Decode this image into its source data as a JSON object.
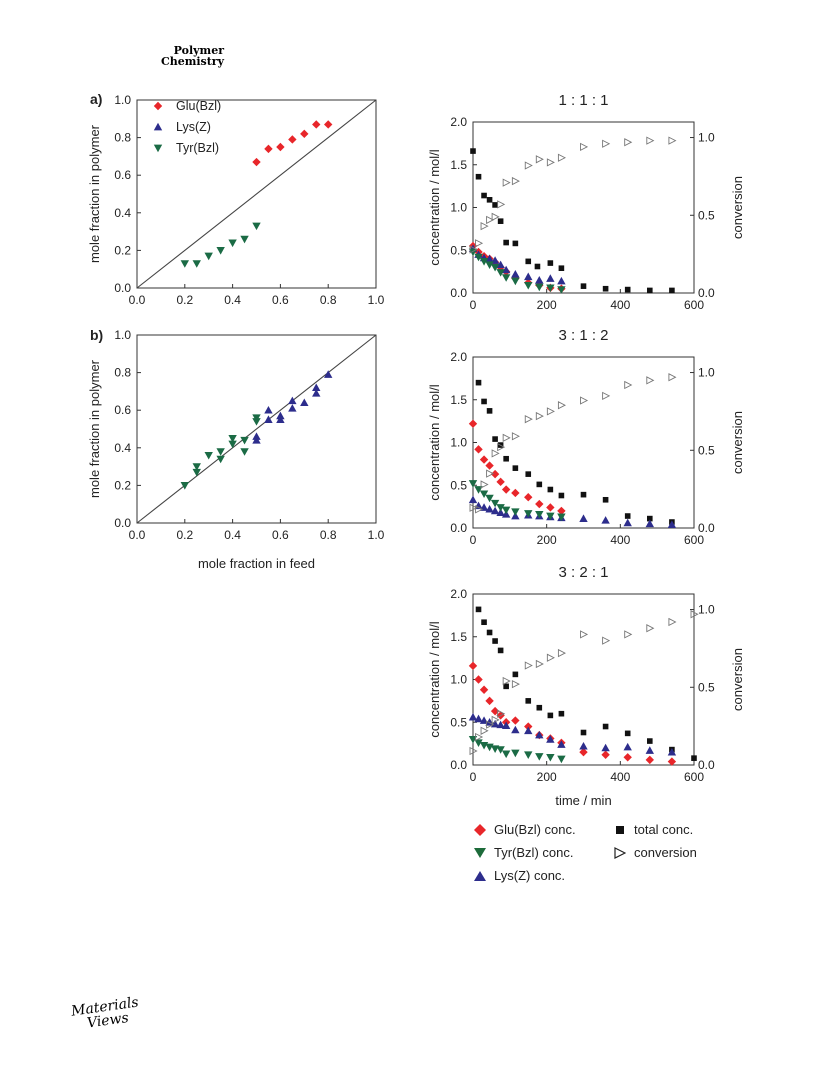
{
  "header": {
    "line1": "Polymer",
    "line2": "Chemistry"
  },
  "footer": {
    "line1": "Materials",
    "line2": "Views"
  },
  "colors": {
    "glu": "#e8262a",
    "lys": "#2d2d8c",
    "tyr": "#1b6b45",
    "tyr_b": "#1d6b3a",
    "black": "#111111",
    "gray": "#777777"
  },
  "bottom_legend": {
    "glu": "Glu(Bzl) conc.",
    "tyr": "Tyr(Bzl) conc.",
    "lys": "Lys(Z) conc.",
    "total": "total conc.",
    "conversion": "conversion"
  },
  "chart_data": [
    {
      "id": "a",
      "panel_label": "a)",
      "type": "scatter",
      "xlabel": "",
      "ylabel": "mole fraction in polymer",
      "xlim": [
        0,
        1.0
      ],
      "ylim": [
        0,
        1.0
      ],
      "xticks": [
        "0.0",
        "0.2",
        "0.4",
        "0.6",
        "0.8",
        "1.0"
      ],
      "yticks": [
        "0.0",
        "0.2",
        "0.4",
        "0.6",
        "0.8",
        "1.0"
      ],
      "legend": [
        "Glu(Bzl)",
        "Lys(Z)",
        "Tyr(Bzl)"
      ],
      "reference_line": "y = x",
      "series": [
        {
          "name": "Glu(Bzl)",
          "marker": "diamond",
          "color": "#e8262a",
          "x": [
            0.5,
            0.55,
            0.6,
            0.65,
            0.7,
            0.75,
            0.8
          ],
          "y": [
            0.67,
            0.74,
            0.75,
            0.79,
            0.82,
            0.87,
            0.87
          ]
        },
        {
          "name": "Tyr(Bzl)",
          "marker": "triangle-down",
          "color": "#1b6b45",
          "x": [
            0.2,
            0.25,
            0.3,
            0.35,
            0.4,
            0.45,
            0.5
          ],
          "y": [
            0.13,
            0.13,
            0.17,
            0.2,
            0.24,
            0.26,
            0.33
          ]
        }
      ]
    },
    {
      "id": "b",
      "panel_label": "b)",
      "type": "scatter",
      "xlabel": "mole fraction in feed",
      "ylabel": "mole fraction in polymer",
      "xlim": [
        0,
        1.0
      ],
      "ylim": [
        0,
        1.0
      ],
      "xticks": [
        "0.0",
        "0.2",
        "0.4",
        "0.6",
        "0.8",
        "1.0"
      ],
      "yticks": [
        "0.0",
        "0.2",
        "0.4",
        "0.6",
        "0.8",
        "1.0"
      ],
      "reference_line": "y = x",
      "series": [
        {
          "name": "Lys(Z)",
          "marker": "triangle-up",
          "color": "#2d2d8c",
          "x": [
            0.5,
            0.5,
            0.55,
            0.55,
            0.6,
            0.6,
            0.65,
            0.65,
            0.7,
            0.75,
            0.75,
            0.8
          ],
          "y": [
            0.44,
            0.46,
            0.55,
            0.6,
            0.55,
            0.57,
            0.61,
            0.65,
            0.64,
            0.69,
            0.72,
            0.79
          ]
        },
        {
          "name": "Tyr(Bzl)",
          "marker": "triangle-down",
          "color": "#1b6b45",
          "x": [
            0.2,
            0.25,
            0.25,
            0.3,
            0.35,
            0.35,
            0.4,
            0.4,
            0.45,
            0.45,
            0.5,
            0.5
          ],
          "y": [
            0.2,
            0.27,
            0.3,
            0.36,
            0.34,
            0.38,
            0.42,
            0.45,
            0.38,
            0.44,
            0.54,
            0.56
          ]
        }
      ]
    },
    {
      "id": "k1",
      "title": "1 : 1 : 1",
      "type": "scatter",
      "xlabel": "",
      "ylabel": "concentration / mol/l",
      "y2label": "conversion",
      "xlim": [
        0,
        600
      ],
      "ylim": [
        0,
        2.0
      ],
      "y2lim": [
        0,
        1.1
      ],
      "xticks": [
        "0",
        "200",
        "400",
        "600"
      ],
      "yticks": [
        "0.0",
        "0.5",
        "1.0",
        "1.5",
        "2.0"
      ],
      "y2ticks": [
        "0.0",
        "0.5",
        "1.0"
      ],
      "series": [
        {
          "name": "total conc.",
          "marker": "square",
          "color": "#111111",
          "x": [
            0,
            15,
            30,
            45,
            60,
            75,
            90,
            115,
            150,
            175,
            210,
            240,
            300,
            360,
            420,
            480,
            540
          ],
          "y": [
            1.66,
            1.36,
            1.14,
            1.09,
            1.03,
            0.84,
            0.59,
            0.58,
            0.37,
            0.31,
            0.35,
            0.29,
            0.08,
            0.05,
            0.04,
            0.03,
            0.03
          ]
        },
        {
          "name": "Glu(Bzl) conc.",
          "marker": "diamond",
          "color": "#e8262a",
          "x": [
            0,
            15,
            30,
            45,
            60,
            75,
            90,
            115,
            150,
            180,
            210,
            240
          ],
          "y": [
            0.55,
            0.48,
            0.43,
            0.4,
            0.36,
            0.3,
            0.25,
            0.17,
            0.12,
            0.09,
            0.06,
            0.05
          ]
        },
        {
          "name": "Lys(Z) conc.",
          "marker": "triangle-up",
          "color": "#2d2d8c",
          "x": [
            0,
            15,
            30,
            45,
            60,
            75,
            90,
            115,
            150,
            180,
            210,
            240
          ],
          "y": [
            0.52,
            0.45,
            0.41,
            0.4,
            0.38,
            0.33,
            0.27,
            0.22,
            0.19,
            0.15,
            0.17,
            0.14
          ]
        },
        {
          "name": "Tyr(Bzl) conc.",
          "marker": "triangle-down",
          "color": "#1b6b45",
          "x": [
            0,
            15,
            30,
            45,
            60,
            75,
            90,
            115,
            150,
            180,
            210,
            240
          ],
          "y": [
            0.48,
            0.42,
            0.37,
            0.33,
            0.3,
            0.24,
            0.18,
            0.14,
            0.09,
            0.07,
            0.06,
            0.04
          ]
        },
        {
          "name": "conversion",
          "marker": "open-triangle-right",
          "color": "#777777",
          "axis": "right",
          "x": [
            0,
            15,
            30,
            45,
            60,
            75,
            90,
            115,
            150,
            180,
            210,
            240,
            300,
            360,
            420,
            480,
            540
          ],
          "y": [
            0.28,
            0.32,
            0.43,
            0.47,
            0.49,
            0.57,
            0.71,
            0.72,
            0.82,
            0.86,
            0.84,
            0.87,
            0.94,
            0.96,
            0.97,
            0.98,
            0.98
          ]
        }
      ]
    },
    {
      "id": "k2",
      "title": "3 : 1 : 2",
      "type": "scatter",
      "xlabel": "",
      "ylabel": "concentration / mol/l",
      "y2label": "conversion",
      "xlim": [
        0,
        600
      ],
      "ylim": [
        0,
        2.0
      ],
      "y2lim": [
        0,
        1.1
      ],
      "xticks": [
        "0",
        "200",
        "400",
        "600"
      ],
      "yticks": [
        "0.0",
        "0.5",
        "1.0",
        "1.5",
        "2.0"
      ],
      "y2ticks": [
        "0.0",
        "0.5",
        "1.0"
      ],
      "series": [
        {
          "name": "total conc.",
          "marker": "square",
          "color": "#111111",
          "x": [
            15,
            30,
            45,
            60,
            75,
            90,
            115,
            150,
            180,
            210,
            240,
            300,
            360,
            420,
            480,
            540
          ],
          "y": [
            1.7,
            1.48,
            1.37,
            1.04,
            0.97,
            0.81,
            0.7,
            0.63,
            0.51,
            0.45,
            0.38,
            0.39,
            0.33,
            0.14,
            0.11,
            0.07
          ]
        },
        {
          "name": "Glu(Bzl) conc.",
          "marker": "diamond",
          "color": "#e8262a",
          "x": [
            0,
            15,
            30,
            45,
            60,
            75,
            90,
            115,
            150,
            180,
            210,
            240
          ],
          "y": [
            1.22,
            0.92,
            0.8,
            0.73,
            0.63,
            0.54,
            0.45,
            0.41,
            0.36,
            0.28,
            0.24,
            0.2
          ]
        },
        {
          "name": "Lys(Z) conc.",
          "marker": "triangle-up",
          "color": "#2d2d8c",
          "x": [
            0,
            15,
            30,
            45,
            60,
            75,
            90,
            115,
            150,
            180,
            210,
            240,
            300,
            360,
            420,
            480,
            540
          ],
          "y": [
            0.33,
            0.26,
            0.24,
            0.22,
            0.2,
            0.18,
            0.16,
            0.14,
            0.15,
            0.14,
            0.13,
            0.12,
            0.11,
            0.09,
            0.06,
            0.05,
            0.04
          ]
        },
        {
          "name": "Tyr(Bzl) conc.",
          "marker": "triangle-down",
          "color": "#1b6b45",
          "x": [
            0,
            15,
            30,
            45,
            60,
            75,
            90,
            115,
            150,
            180,
            210,
            240
          ],
          "y": [
            0.52,
            0.45,
            0.4,
            0.35,
            0.29,
            0.24,
            0.21,
            0.19,
            0.17,
            0.16,
            0.14,
            0.13
          ]
        },
        {
          "name": "conversion",
          "marker": "open-triangle-right",
          "color": "#777777",
          "axis": "right",
          "x": [
            0,
            15,
            30,
            45,
            60,
            75,
            90,
            115,
            150,
            180,
            210,
            240,
            300,
            360,
            420,
            480,
            540
          ],
          "y": [
            0.13,
            0.12,
            0.28,
            0.35,
            0.48,
            0.52,
            0.58,
            0.59,
            0.7,
            0.72,
            0.75,
            0.79,
            0.82,
            0.85,
            0.92,
            0.95,
            0.97
          ]
        }
      ]
    },
    {
      "id": "k3",
      "title": "3 : 2 : 1",
      "type": "scatter",
      "xlabel": "time / min",
      "ylabel": "concentration / mol/l",
      "y2label": "conversion",
      "xlim": [
        0,
        600
      ],
      "ylim": [
        0,
        2.0
      ],
      "y2lim": [
        0,
        1.1
      ],
      "xticks": [
        "0",
        "200",
        "400",
        "600"
      ],
      "yticks": [
        "0.0",
        "0.5",
        "1.0",
        "1.5",
        "2.0"
      ],
      "y2ticks": [
        "0.0",
        "0.5",
        "1.0"
      ],
      "series": [
        {
          "name": "total conc.",
          "marker": "square",
          "color": "#111111",
          "x": [
            15,
            30,
            45,
            60,
            75,
            90,
            115,
            150,
            180,
            210,
            240,
            300,
            360,
            420,
            480,
            540,
            600
          ],
          "y": [
            1.82,
            1.67,
            1.55,
            1.45,
            1.34,
            0.92,
            1.06,
            0.75,
            0.67,
            0.58,
            0.6,
            0.38,
            0.45,
            0.37,
            0.28,
            0.18,
            0.08
          ]
        },
        {
          "name": "Glu(Bzl) conc.",
          "marker": "diamond",
          "color": "#e8262a",
          "x": [
            0,
            15,
            30,
            45,
            60,
            75,
            90,
            115,
            150,
            180,
            210,
            240,
            300,
            360,
            420,
            480,
            540
          ],
          "y": [
            1.16,
            1.0,
            0.88,
            0.75,
            0.63,
            0.58,
            0.5,
            0.52,
            0.45,
            0.35,
            0.31,
            0.26,
            0.15,
            0.12,
            0.09,
            0.06,
            0.04
          ]
        },
        {
          "name": "Lys(Z) conc.",
          "marker": "triangle-up",
          "color": "#2d2d8c",
          "x": [
            0,
            15,
            30,
            45,
            60,
            75,
            90,
            115,
            150,
            180,
            210,
            240,
            300,
            360,
            420,
            480,
            540
          ],
          "y": [
            0.56,
            0.54,
            0.52,
            0.5,
            0.48,
            0.47,
            0.46,
            0.41,
            0.4,
            0.35,
            0.3,
            0.24,
            0.22,
            0.2,
            0.21,
            0.17,
            0.15
          ]
        },
        {
          "name": "Tyr(Bzl) conc.",
          "marker": "triangle-down",
          "color": "#1b6b45",
          "x": [
            0,
            15,
            30,
            45,
            60,
            75,
            90,
            115,
            150,
            180,
            210,
            240
          ],
          "y": [
            0.3,
            0.26,
            0.23,
            0.21,
            0.19,
            0.18,
            0.13,
            0.14,
            0.12,
            0.1,
            0.09,
            0.07
          ]
        },
        {
          "name": "conversion",
          "marker": "open-triangle-right",
          "color": "#777777",
          "axis": "right",
          "x": [
            0,
            15,
            30,
            45,
            60,
            75,
            90,
            115,
            150,
            180,
            210,
            240,
            300,
            360,
            420,
            480,
            540,
            600
          ],
          "y": [
            0.09,
            0.18,
            0.22,
            0.26,
            0.29,
            0.33,
            0.54,
            0.52,
            0.64,
            0.65,
            0.69,
            0.72,
            0.84,
            0.8,
            0.84,
            0.88,
            0.92,
            0.97
          ]
        }
      ]
    }
  ]
}
